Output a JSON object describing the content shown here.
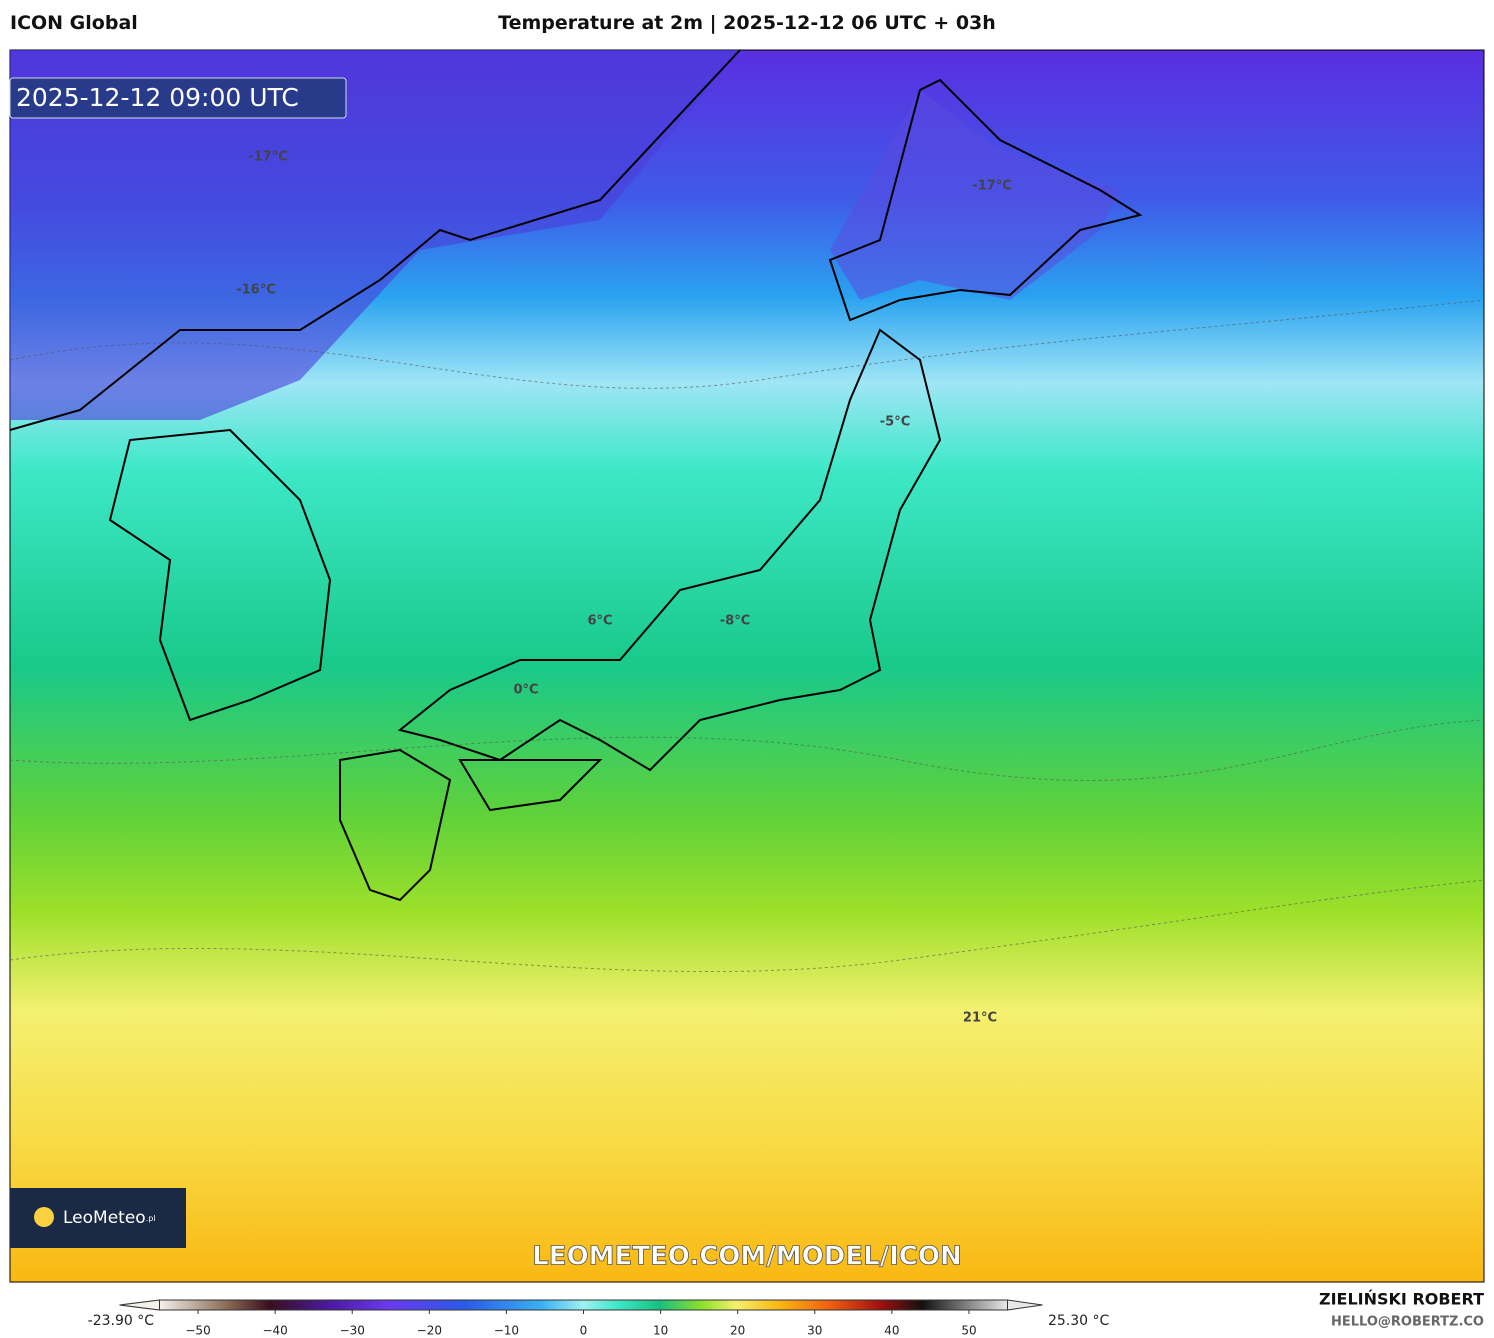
{
  "header": {
    "model": "ICON Global",
    "title": "Temperature at 2m | 2025-12-12 06 UTC + 03h"
  },
  "map": {
    "timestamp": "2025-12-12 09:00 UTC",
    "labels": [
      "-17°C",
      "-16°C",
      "-17°C",
      "-5°C",
      "6°C",
      "-8°C",
      "0°C",
      "21°C"
    ],
    "watermark": "LEOMETEO.COM/MODEL/ICON",
    "logo": {
      "name": "LeoMeteo",
      "suffix": ".pl"
    }
  },
  "colorbar": {
    "min_label": "-23.90 °C",
    "max_label": "25.30 °C",
    "range": [
      -55,
      55
    ],
    "ticks": [
      {
        "value": -50,
        "label": "−50"
      },
      {
        "value": -40,
        "label": "−40"
      },
      {
        "value": -30,
        "label": "−30"
      },
      {
        "value": -20,
        "label": "−20"
      },
      {
        "value": -10,
        "label": "−10"
      },
      0,
      10,
      20,
      30,
      40,
      50
    ]
  },
  "footer": {
    "author": "ZIELIŃSKI ROBERT",
    "contact": "HELLO@ROBERTZ.CO"
  }
}
